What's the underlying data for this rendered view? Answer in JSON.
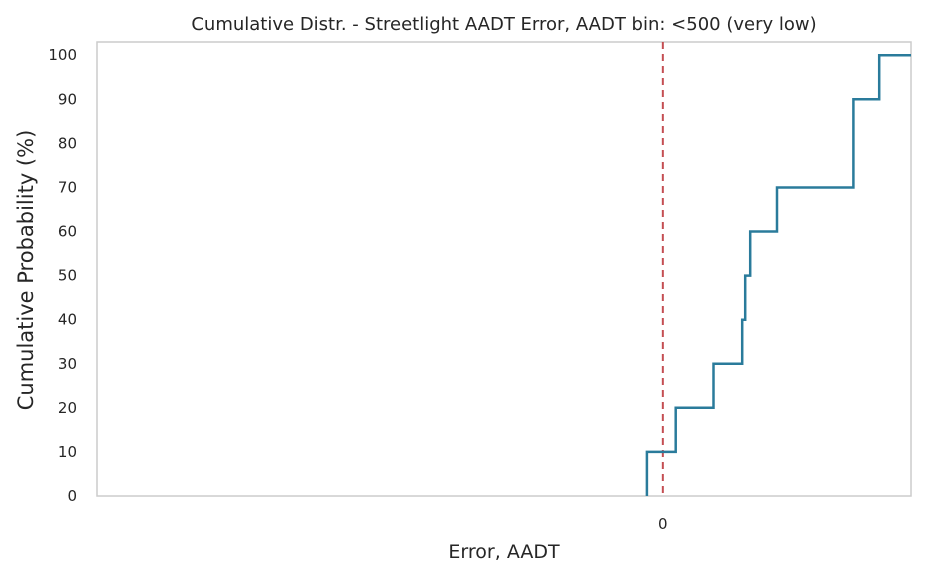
{
  "chart_data": {
    "type": "line",
    "title": "Cumulative Distr. - Streetlight AADT Error, AADT bin: <500 (very low)",
    "xlabel": "Error, AADT",
    "ylabel": "Cumulative Probability (%)",
    "x_ticks": [
      0
    ],
    "y_ticks": [
      0,
      10,
      20,
      30,
      40,
      50,
      60,
      70,
      80,
      90,
      100
    ],
    "xlim": [
      -570,
      250
    ],
    "ylim": [
      0,
      103
    ],
    "grid": false,
    "series": [
      {
        "type": "step-cdf",
        "color": "#2a7b9b",
        "x": [
          -16,
          13,
          51,
          80,
          83,
          88,
          115,
          192,
          218,
          248
        ],
        "y": [
          10,
          20,
          30,
          40,
          50,
          60,
          70,
          90,
          100,
          100
        ]
      }
    ],
    "reference_line": {
      "x": 0,
      "color": "#c44e52",
      "style": "dashed"
    },
    "colors": {
      "series": "#2a7b9b",
      "reference": "#c44e52",
      "spine": "#cccccc"
    }
  }
}
